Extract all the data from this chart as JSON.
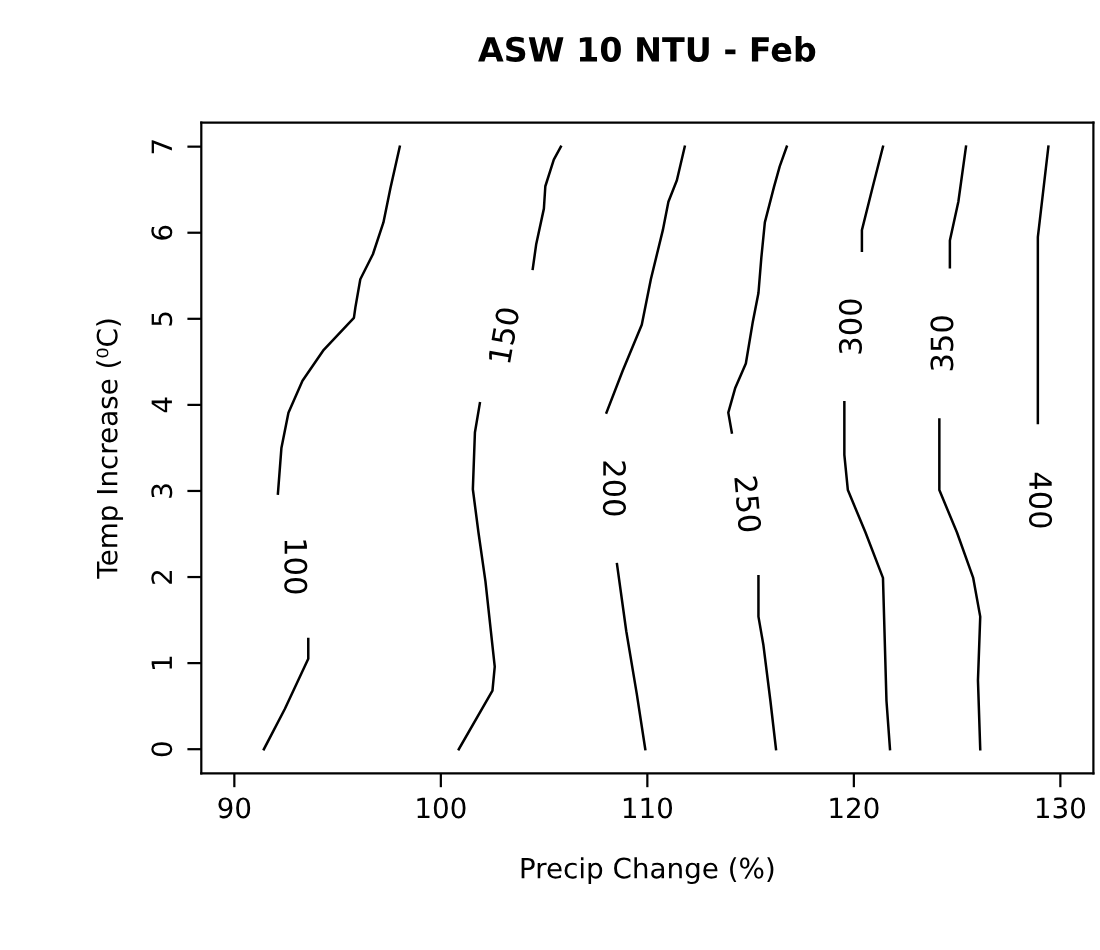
{
  "chart_data": {
    "type": "line",
    "title": "ASW 10 NTU - Feb",
    "xlabel": "Precip Change (%)",
    "ylabel": "Temp Increase (⁰C)",
    "xlim": [
      88.4,
      131.6
    ],
    "xticks": [
      90,
      100,
      110,
      120,
      130
    ],
    "ylim": [
      -0.28,
      7.28
    ],
    "yticks": [
      0,
      1,
      2,
      3,
      4,
      5,
      6,
      7
    ],
    "grid": false,
    "legend": false,
    "series": [
      {
        "name": "100",
        "color": "#000000",
        "x": [
          91.43,
          92.45,
          93.58,
          93.58,
          null,
          92.11,
          92.28,
          92.62,
          93.3,
          94.33,
          95.79,
          95.86,
          96.1,
          96.71,
          97.22,
          97.56,
          98.01
        ],
        "values": [
          0,
          0.47,
          1.05,
          1.28,
          null,
          2.97,
          3.5,
          3.91,
          4.28,
          4.64,
          5.01,
          5.13,
          5.46,
          5.75,
          6.12,
          6.52,
          7
        ]
      },
      {
        "name": "150",
        "color": "#000000",
        "x": [
          100.87,
          102.5,
          102.61,
          102.16,
          101.82,
          101.55,
          101.65,
          101.89,
          null,
          104.45,
          104.62,
          104.99,
          105.06,
          105.47,
          105.81
        ],
        "values": [
          0,
          0.68,
          0.96,
          1.95,
          2.52,
          3.02,
          3.68,
          4.02,
          null,
          5.58,
          5.87,
          6.28,
          6.54,
          6.85,
          7
        ]
      },
      {
        "name": "200",
        "color": "#000000",
        "x": [
          109.9,
          109.49,
          108.98,
          108.53,
          null,
          108.02,
          108.81,
          109.73,
          110.17,
          110.75,
          111.02,
          111.43,
          111.81
        ],
        "values": [
          0,
          0.64,
          1.37,
          2.15,
          null,
          3.91,
          4.4,
          4.93,
          5.46,
          6.03,
          6.36,
          6.61,
          7
        ]
      },
      {
        "name": "250",
        "color": "#000000",
        "x": [
          116.23,
          115.96,
          115.62,
          115.38,
          115.38,
          null,
          114.09,
          113.92,
          114.26,
          114.77,
          115.11,
          115.38,
          115.52,
          115.69,
          116.13,
          116.41,
          116.75
        ],
        "values": [
          0,
          0.56,
          1.21,
          1.54,
          2.01,
          null,
          3.68,
          3.91,
          4.2,
          4.48,
          4.97,
          5.3,
          5.71,
          6.12,
          6.53,
          6.77,
          7
        ]
      },
      {
        "name": "300",
        "color": "#000000",
        "x": [
          121.75,
          121.58,
          121.41,
          120.56,
          119.71,
          119.54,
          119.54,
          null,
          120.39,
          120.39,
          120.9,
          121.41
        ],
        "values": [
          0,
          0.56,
          1.99,
          2.52,
          3.01,
          3.42,
          4.03,
          null,
          5.79,
          6.03,
          6.52,
          7
        ]
      },
      {
        "name": "350",
        "color": "#000000",
        "x": [
          126.12,
          126.01,
          126.12,
          125.78,
          124.99,
          124.14,
          124.14,
          null,
          124.65,
          124.65,
          125.06,
          125.43
        ],
        "values": [
          0,
          0.8,
          1.54,
          1.99,
          2.52,
          3.01,
          3.83,
          null,
          5.6,
          5.91,
          6.36,
          7
        ]
      },
      {
        "name": "400",
        "color": "#000000",
        "x": [
          128.91,
          128.91,
          129.42
        ],
        "values": [
          3.79,
          5.95,
          7
        ]
      }
    ]
  }
}
